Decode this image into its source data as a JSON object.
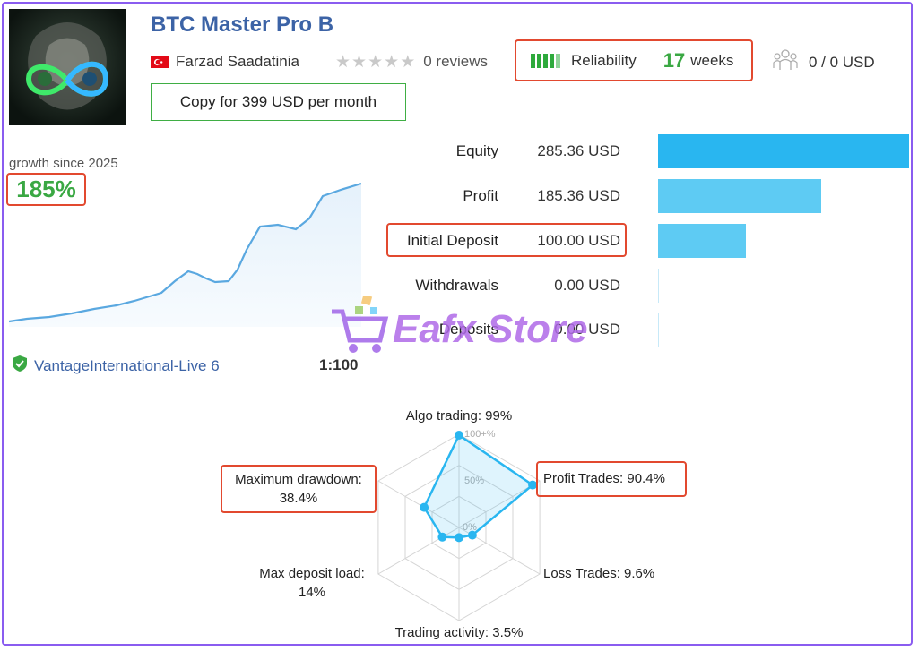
{
  "header": {
    "title": "BTC Master Pro B",
    "author": "Farzad Saadatinia",
    "reviews": "0 reviews",
    "reliability_label": "Reliability",
    "reliability_value": "17",
    "reliability_unit": "weeks",
    "subscribers": "0 / 0 USD",
    "copy_button": "Copy for 399 USD per month",
    "rating_stars": 0
  },
  "growth": {
    "label": "growth since 2025",
    "value": "185%"
  },
  "account": {
    "broker": "VantageInternational-Live 6",
    "leverage": "1:100"
  },
  "stats": [
    {
      "label": "Equity",
      "value": "285.36 USD"
    },
    {
      "label": "Profit",
      "value": "185.36 USD"
    },
    {
      "label": "Initial Deposit",
      "value": "100.00 USD"
    },
    {
      "label": "Withdrawals",
      "value": "0.00 USD"
    },
    {
      "label": "Deposits",
      "value": "0.00 USD"
    }
  ],
  "watermark": "Eafx Store",
  "radar": {
    "algo": "Algo trading: 99%",
    "profit": "Profit Trades: 90.4%",
    "loss": "Loss Trades: 9.6%",
    "activity": "Trading activity: 3.5%",
    "load_line1": "Max deposit load:",
    "load_line2": "14%",
    "drawdown_line1": "Maximum drawdown:",
    "drawdown_line2": "38.4%",
    "tick_100": "100+%",
    "tick_50": "50%",
    "tick_0": "0%"
  },
  "colors": {
    "accent": "#3c63a6",
    "positive": "#3aa843",
    "highlight": "#e2492f",
    "bar": "#29b6f0",
    "bar_light": "#5ecbf3"
  },
  "chart_data": [
    {
      "type": "bar",
      "categories": [
        "Equity",
        "Profit",
        "Initial Deposit",
        "Withdrawals",
        "Deposits"
      ],
      "values": [
        285.36,
        185.36,
        100.0,
        0.0,
        0.0
      ],
      "xlim": [
        0,
        285.36
      ]
    },
    {
      "type": "radar",
      "categories": [
        "Algo trading",
        "Profit Trades",
        "Loss Trades",
        "Trading activity",
        "Max deposit load",
        "Maximum drawdown"
      ],
      "values": [
        99,
        90.4,
        9.6,
        3.5,
        14,
        38.4
      ],
      "ylim": [
        0,
        100
      ]
    }
  ]
}
